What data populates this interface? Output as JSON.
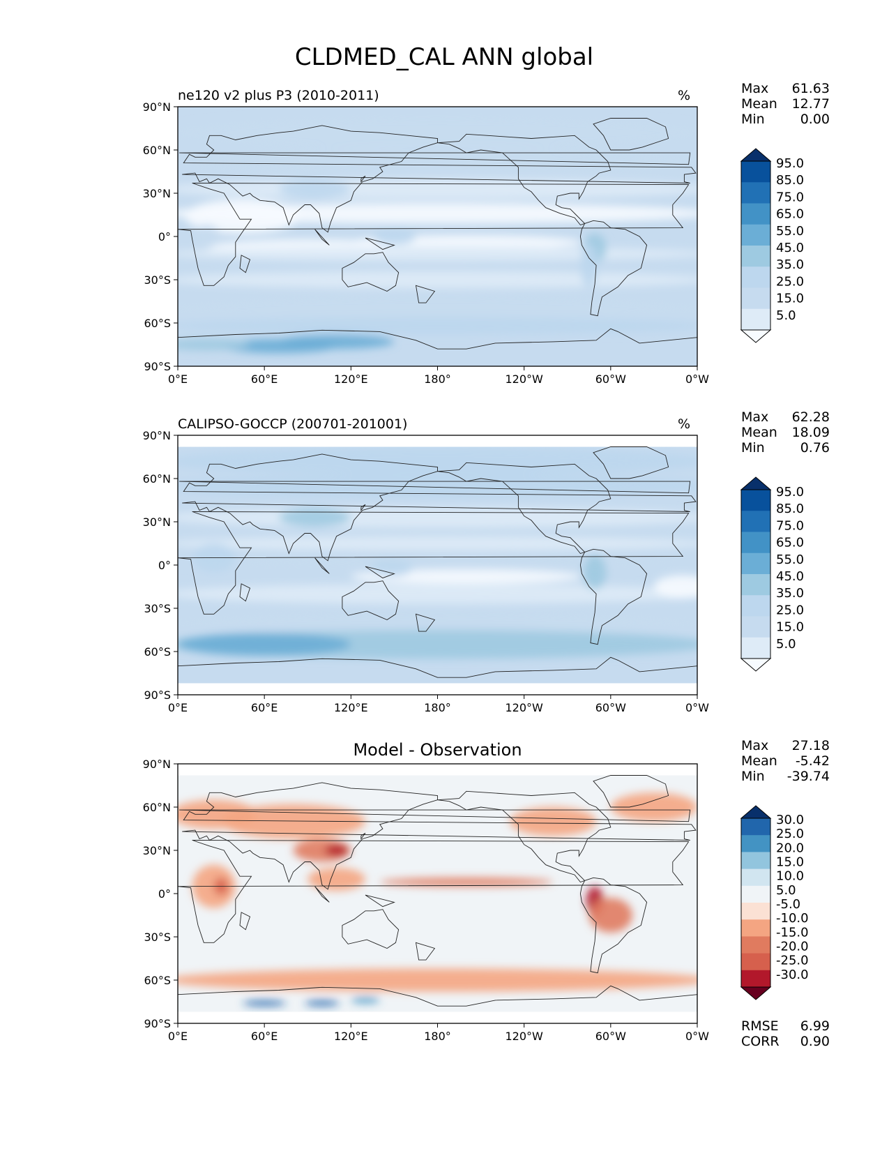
{
  "title": "CLDMED_CAL ANN global",
  "lat_labels": [
    "90°N",
    "60°N",
    "30°N",
    "0°",
    "30°S",
    "60°S",
    "90°S"
  ],
  "lon_labels": [
    "0°E",
    "60°E",
    "120°E",
    "180°",
    "120°W",
    "60°W",
    "0°W"
  ],
  "panels": [
    {
      "title_left": "ne120 v2 plus P3 (2010-2011)",
      "title_center": "",
      "units": "%",
      "stats": [
        {
          "label": "Max",
          "value": "61.63"
        },
        {
          "label": "Mean",
          "value": "12.77"
        },
        {
          "label": "Min",
          "value": "0.00"
        }
      ],
      "extra_stats": [],
      "colorbar_ticks": [
        "95.0",
        "85.0",
        "75.0",
        "65.0",
        "55.0",
        "45.0",
        "35.0",
        "25.0",
        "15.0",
        "5.0"
      ],
      "colorbar_colors": [
        "#08306b",
        "#08519c",
        "#2171b5",
        "#4292c6",
        "#6baed6",
        "#9ecae1",
        "#bdd7ee",
        "#c6dbef",
        "#deebf7",
        "#f7fbff"
      ],
      "map_field": "model"
    },
    {
      "title_left": "CALIPSO-GOCCP (200701-201001)",
      "title_center": "",
      "units": "%",
      "stats": [
        {
          "label": "Max",
          "value": "62.28"
        },
        {
          "label": "Mean",
          "value": "18.09"
        },
        {
          "label": "Min",
          "value": "0.76"
        }
      ],
      "extra_stats": [],
      "colorbar_ticks": [
        "95.0",
        "85.0",
        "75.0",
        "65.0",
        "55.0",
        "45.0",
        "35.0",
        "25.0",
        "15.0",
        "5.0"
      ],
      "colorbar_colors": [
        "#08306b",
        "#08519c",
        "#2171b5",
        "#4292c6",
        "#6baed6",
        "#9ecae1",
        "#bdd7ee",
        "#c6dbef",
        "#deebf7",
        "#f7fbff"
      ],
      "map_field": "obs"
    },
    {
      "title_left": "",
      "title_center": "Model - Observation",
      "units": "",
      "stats": [
        {
          "label": "Max",
          "value": "27.18"
        },
        {
          "label": "Mean",
          "value": "-5.42"
        },
        {
          "label": "Min",
          "value": "-39.74"
        }
      ],
      "extra_stats": [
        {
          "label": "RMSE",
          "value": "6.99"
        },
        {
          "label": "CORR",
          "value": "0.90"
        }
      ],
      "colorbar_ticks": [
        "30.0",
        "25.0",
        "20.0",
        "15.0",
        "10.0",
        "5.0",
        "-5.0",
        "-10.0",
        "-15.0",
        "-20.0",
        "-25.0",
        "-30.0"
      ],
      "colorbar_colors": [
        "#08306b",
        "#2166ac",
        "#4393c3",
        "#92c5de",
        "#d1e5f0",
        "#f0f4f7",
        "#fbe1d4",
        "#f4a582",
        "#e07b5f",
        "#d6604d",
        "#b2182b",
        "#67001f"
      ],
      "map_field": "diff"
    }
  ]
}
